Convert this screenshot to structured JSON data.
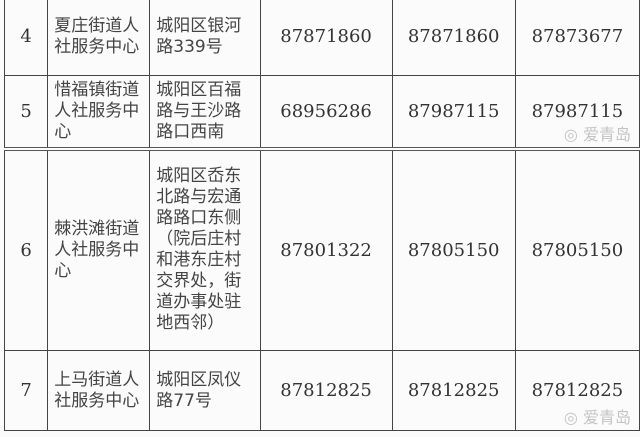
{
  "rows": [
    {
      "no": "4",
      "name": "夏庄街道人社服务中心",
      "address": "城阳区银河路339号",
      "phone1": "87871860",
      "phone2": "87871860",
      "phone3": "87873677"
    },
    {
      "no": "5",
      "name": "惜福镇街道人社服务中心",
      "address": "城阳区百福路与王沙路路口西南",
      "phone1": "68956286",
      "phone2": "87987115",
      "phone3": "87987115"
    },
    {
      "no": "6",
      "name": "棘洪滩街道人社服务中心",
      "address": "城阳区岙东北路与宏通路路口东侧（院后庄村和港东庄村交界处，街道办事处驻地西邻）",
      "phone1": "87801322",
      "phone2": "87805150",
      "phone3": "87805150"
    },
    {
      "no": "7",
      "name": "上马街道人社服务中心",
      "address": "城阳区凤仪路77号",
      "phone1": "87812825",
      "phone2": "87812825",
      "phone3": "87812825"
    }
  ],
  "watermark": "爱青岛"
}
